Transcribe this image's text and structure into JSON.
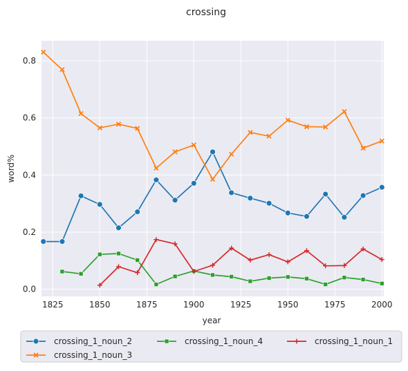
{
  "chart_data": {
    "type": "line",
    "title": "crossing",
    "xlabel": "year",
    "ylabel": "word%",
    "xlim": [
      1819,
      2001
    ],
    "ylim": [
      -0.025,
      0.87
    ],
    "xticks": [
      1825,
      1850,
      1875,
      1900,
      1925,
      1950,
      1975,
      2000
    ],
    "xtick_labels": [
      "1825",
      "1850",
      "1875",
      "1900",
      "1925",
      "1950",
      "1975",
      "2000"
    ],
    "yticks": [
      0.0,
      0.2,
      0.4,
      0.6,
      0.8
    ],
    "ytick_labels": [
      "0.0",
      "0.2",
      "0.4",
      "0.6",
      "0.8"
    ],
    "grid": true,
    "legend_position": "bottom",
    "series": [
      {
        "name": "crossing_1_noun_2",
        "color": "#1f77b4",
        "marker": "circle",
        "x": [
          1820,
          1830,
          1840,
          1850,
          1860,
          1870,
          1880,
          1890,
          1900,
          1910,
          1920,
          1930,
          1940,
          1950,
          1960,
          1970,
          1980,
          1990,
          2000
        ],
        "y": [
          0.167,
          0.167,
          0.327,
          0.297,
          0.215,
          0.271,
          0.383,
          0.312,
          0.371,
          0.481,
          0.338,
          0.319,
          0.301,
          0.267,
          0.255,
          0.333,
          0.252,
          0.328,
          0.357
        ]
      },
      {
        "name": "crossing_1_noun_3",
        "color": "#ff7f0e",
        "marker": "x",
        "x": [
          1820,
          1830,
          1840,
          1850,
          1860,
          1870,
          1880,
          1890,
          1900,
          1910,
          1920,
          1930,
          1940,
          1950,
          1960,
          1970,
          1980,
          1990,
          2000
        ],
        "y": [
          0.83,
          0.769,
          0.615,
          0.565,
          0.578,
          0.563,
          0.424,
          0.481,
          0.505,
          0.385,
          0.473,
          0.549,
          0.536,
          0.592,
          0.569,
          0.568,
          0.622,
          0.494,
          0.519
        ]
      },
      {
        "name": "crossing_1_noun_4",
        "color": "#2ca02c",
        "marker": "square",
        "x": [
          1830,
          1840,
          1850,
          1860,
          1870,
          1880,
          1890,
          1900,
          1910,
          1920,
          1930,
          1940,
          1950,
          1960,
          1970,
          1980,
          1990,
          2000
        ],
        "y": [
          0.062,
          0.054,
          0.122,
          0.125,
          0.102,
          0.017,
          0.045,
          0.064,
          0.05,
          0.044,
          0.028,
          0.039,
          0.043,
          0.037,
          0.017,
          0.041,
          0.034,
          0.02
        ]
      },
      {
        "name": "crossing_1_noun_1",
        "color": "#d62728",
        "marker": "plus",
        "x": [
          1850,
          1860,
          1870,
          1880,
          1890,
          1900,
          1910,
          1920,
          1930,
          1940,
          1950,
          1960,
          1970,
          1980,
          1990,
          2000
        ],
        "y": [
          0.014,
          0.079,
          0.058,
          0.174,
          0.159,
          0.062,
          0.084,
          0.144,
          0.102,
          0.121,
          0.096,
          0.135,
          0.082,
          0.083,
          0.141,
          0.104
        ]
      }
    ],
    "legend_order": [
      0,
      2,
      3,
      1
    ]
  }
}
